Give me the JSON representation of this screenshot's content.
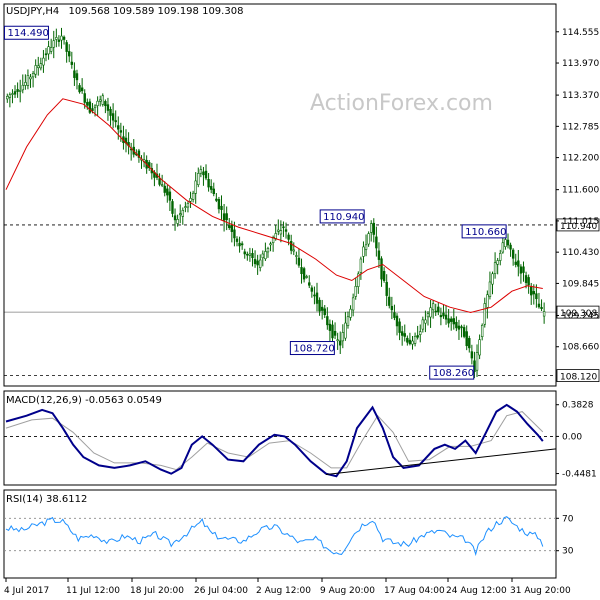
{
  "header": {
    "symbol": "USDJPY,H4",
    "ohlc": "109.568 109.589 109.198 109.308"
  },
  "watermark": "ActionForex.com",
  "colors": {
    "candle": "#006400",
    "ma": "#dc0000",
    "macd": "#00008b",
    "signal": "#a0a0a0",
    "rsi": "#1e90ff",
    "annotation": "#00008b",
    "trendline": "#000000"
  },
  "chart_data": [
    {
      "type": "candlestick",
      "panel": "price",
      "y_ticks": [
        "114.555",
        "113.970",
        "113.370",
        "112.785",
        "112.200",
        "111.600",
        "111.015",
        "110.430",
        "109.845",
        "109.245",
        "108.660"
      ],
      "ylim": [
        108.0,
        115.0
      ],
      "x_tick_labels": [
        "4 Jul 2017",
        "11 Jul 12:00",
        "18 Jul 20:00",
        "26 Jul 04:00",
        "2 Aug 12:00",
        "9 Aug 20:00",
        "17 Aug 04:00",
        "24 Aug 12:00",
        "31 Aug 20:00"
      ],
      "price_path": [
        [
          0,
          113.3
        ],
        [
          8,
          113.6
        ],
        [
          14,
          114.0
        ],
        [
          18,
          114.3
        ],
        [
          22,
          114.49
        ],
        [
          28,
          113.6
        ],
        [
          33,
          113.1
        ],
        [
          38,
          113.3
        ],
        [
          45,
          112.6
        ],
        [
          52,
          112.2
        ],
        [
          58,
          111.9
        ],
        [
          63,
          111.5
        ],
        [
          66,
          111.0
        ],
        [
          72,
          111.4
        ],
        [
          76,
          112.0
        ],
        [
          80,
          111.6
        ],
        [
          86,
          111.0
        ],
        [
          92,
          110.5
        ],
        [
          98,
          110.2
        ],
        [
          104,
          110.7
        ],
        [
          108,
          110.9
        ],
        [
          112,
          110.4
        ],
        [
          116,
          110.0
        ],
        [
          120,
          109.6
        ],
        [
          124,
          109.2
        ],
        [
          128,
          108.8
        ],
        [
          130,
          108.72
        ],
        [
          134,
          109.4
        ],
        [
          138,
          110.3
        ],
        [
          142,
          110.94
        ],
        [
          146,
          110.0
        ],
        [
          150,
          109.3
        ],
        [
          154,
          108.9
        ],
        [
          158,
          108.7
        ],
        [
          162,
          109.1
        ],
        [
          166,
          109.4
        ],
        [
          170,
          109.2
        ],
        [
          174,
          109.1
        ],
        [
          178,
          108.9
        ],
        [
          180,
          108.6
        ],
        [
          182,
          108.26
        ],
        [
          186,
          109.4
        ],
        [
          190,
          110.2
        ],
        [
          194,
          110.66
        ],
        [
          197,
          110.3
        ],
        [
          200,
          110.1
        ],
        [
          203,
          109.8
        ],
        [
          206,
          109.5
        ],
        [
          208,
          109.308
        ]
      ],
      "ma_path": [
        [
          0,
          111.6
        ],
        [
          8,
          112.4
        ],
        [
          16,
          113.0
        ],
        [
          22,
          113.3
        ],
        [
          30,
          113.2
        ],
        [
          40,
          112.8
        ],
        [
          50,
          112.3
        ],
        [
          60,
          111.8
        ],
        [
          70,
          111.4
        ],
        [
          80,
          111.1
        ],
        [
          90,
          110.9
        ],
        [
          100,
          110.75
        ],
        [
          110,
          110.6
        ],
        [
          120,
          110.3
        ],
        [
          128,
          110.0
        ],
        [
          134,
          109.9
        ],
        [
          140,
          110.1
        ],
        [
          146,
          110.2
        ],
        [
          154,
          109.9
        ],
        [
          162,
          109.6
        ],
        [
          172,
          109.4
        ],
        [
          180,
          109.3
        ],
        [
          188,
          109.4
        ],
        [
          196,
          109.7
        ],
        [
          202,
          109.8
        ],
        [
          208,
          109.75
        ]
      ],
      "hlines": [
        {
          "value": 110.94,
          "label": "110.940",
          "style": "dashed"
        },
        {
          "value": 109.308,
          "label": "109.308",
          "style": "solid"
        },
        {
          "value": 108.12,
          "label": "108.120",
          "style": "dashed"
        }
      ],
      "annotations": [
        {
          "label": "114.490",
          "value": 114.49,
          "bar": 18
        },
        {
          "label": "110.940",
          "value": 110.94,
          "bar": 138
        },
        {
          "label": "108.720",
          "value": 108.72,
          "bar": 128
        },
        {
          "label": "110.660",
          "value": 110.66,
          "bar": 193
        },
        {
          "label": "108.260",
          "value": 108.26,
          "bar": 182
        }
      ]
    },
    {
      "type": "line",
      "panel": "macd",
      "label": "MACD(12,26,9) -0.0563 0.0549",
      "y_ticks": [
        "0.3828",
        "0.00",
        "-0.4481"
      ],
      "ylim": [
        -0.55,
        0.5
      ],
      "macd_path": [
        [
          0,
          0.18
        ],
        [
          8,
          0.25
        ],
        [
          14,
          0.32
        ],
        [
          18,
          0.28
        ],
        [
          22,
          0.1
        ],
        [
          26,
          -0.1
        ],
        [
          30,
          -0.25
        ],
        [
          36,
          -0.35
        ],
        [
          42,
          -0.38
        ],
        [
          48,
          -0.35
        ],
        [
          54,
          -0.3
        ],
        [
          60,
          -0.4
        ],
        [
          64,
          -0.45
        ],
        [
          68,
          -0.38
        ],
        [
          72,
          -0.1
        ],
        [
          76,
          0.0
        ],
        [
          80,
          -0.1
        ],
        [
          86,
          -0.28
        ],
        [
          92,
          -0.3
        ],
        [
          98,
          -0.1
        ],
        [
          104,
          0.02
        ],
        [
          108,
          0.0
        ],
        [
          112,
          -0.1
        ],
        [
          118,
          -0.3
        ],
        [
          124,
          -0.45
        ],
        [
          128,
          -0.48
        ],
        [
          132,
          -0.3
        ],
        [
          136,
          0.1
        ],
        [
          142,
          0.35
        ],
        [
          146,
          0.1
        ],
        [
          150,
          -0.25
        ],
        [
          154,
          -0.38
        ],
        [
          160,
          -0.35
        ],
        [
          166,
          -0.15
        ],
        [
          170,
          -0.1
        ],
        [
          174,
          -0.15
        ],
        [
          178,
          -0.05
        ],
        [
          182,
          -0.2
        ],
        [
          186,
          0.05
        ],
        [
          190,
          0.3
        ],
        [
          194,
          0.38
        ],
        [
          198,
          0.3
        ],
        [
          202,
          0.15
        ],
        [
          206,
          0.02
        ],
        [
          208,
          -0.056
        ]
      ],
      "signal_path": [
        [
          0,
          0.1
        ],
        [
          10,
          0.2
        ],
        [
          18,
          0.22
        ],
        [
          26,
          0.05
        ],
        [
          34,
          -0.2
        ],
        [
          42,
          -0.32
        ],
        [
          52,
          -0.32
        ],
        [
          60,
          -0.35
        ],
        [
          66,
          -0.4
        ],
        [
          72,
          -0.25
        ],
        [
          78,
          -0.08
        ],
        [
          86,
          -0.2
        ],
        [
          94,
          -0.25
        ],
        [
          102,
          -0.08
        ],
        [
          110,
          -0.05
        ],
        [
          118,
          -0.2
        ],
        [
          126,
          -0.38
        ],
        [
          132,
          -0.38
        ],
        [
          138,
          -0.05
        ],
        [
          144,
          0.25
        ],
        [
          150,
          0.05
        ],
        [
          156,
          -0.3
        ],
        [
          164,
          -0.28
        ],
        [
          172,
          -0.12
        ],
        [
          180,
          -0.12
        ],
        [
          188,
          -0.05
        ],
        [
          194,
          0.25
        ],
        [
          200,
          0.3
        ],
        [
          208,
          0.055
        ]
      ],
      "trendline": [
        [
          124,
          -0.46
        ],
        [
          220,
          -0.15
        ]
      ]
    },
    {
      "type": "line",
      "panel": "rsi",
      "label": "RSI(14) 38.6112",
      "y_ticks": [
        "70",
        "30"
      ],
      "ylim": [
        0,
        100
      ],
      "rsi_path": [
        [
          0,
          58
        ],
        [
          6,
          55
        ],
        [
          12,
          62
        ],
        [
          18,
          68
        ],
        [
          22,
          66
        ],
        [
          28,
          45
        ],
        [
          34,
          50
        ],
        [
          40,
          40
        ],
        [
          46,
          48
        ],
        [
          52,
          42
        ],
        [
          58,
          50
        ],
        [
          64,
          38
        ],
        [
          70,
          52
        ],
        [
          76,
          66
        ],
        [
          80,
          50
        ],
        [
          86,
          44
        ],
        [
          92,
          42
        ],
        [
          98,
          55
        ],
        [
          104,
          60
        ],
        [
          108,
          52
        ],
        [
          114,
          40
        ],
        [
          120,
          44
        ],
        [
          126,
          30
        ],
        [
          130,
          28
        ],
        [
          134,
          48
        ],
        [
          138,
          62
        ],
        [
          142,
          70
        ],
        [
          146,
          45
        ],
        [
          150,
          40
        ],
        [
          156,
          38
        ],
        [
          162,
          50
        ],
        [
          168,
          55
        ],
        [
          172,
          48
        ],
        [
          178,
          44
        ],
        [
          182,
          28
        ],
        [
          186,
          52
        ],
        [
          190,
          64
        ],
        [
          194,
          70
        ],
        [
          198,
          60
        ],
        [
          202,
          52
        ],
        [
          206,
          48
        ],
        [
          208,
          38.6
        ]
      ]
    }
  ]
}
